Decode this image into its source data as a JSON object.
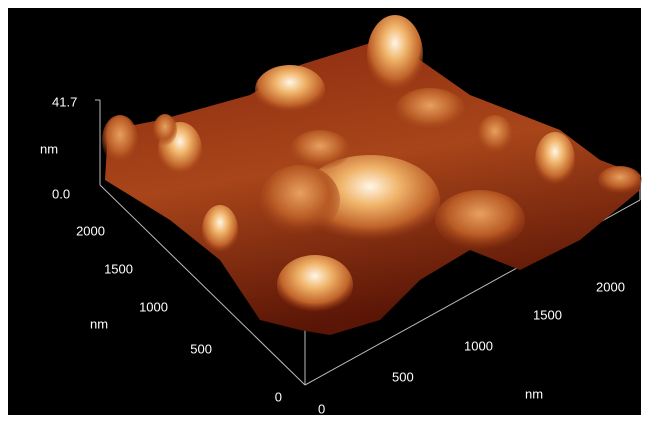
{
  "z_axis": {
    "max_label": "41.7",
    "min_label": "0.0",
    "unit": "nm"
  },
  "y_axis": {
    "ticks": [
      "2000",
      "1500",
      "1000",
      "500",
      "0"
    ],
    "unit": "nm"
  },
  "x_axis": {
    "ticks": [
      "0",
      "500",
      "1000",
      "1500",
      "2000"
    ],
    "unit": "nm"
  }
}
